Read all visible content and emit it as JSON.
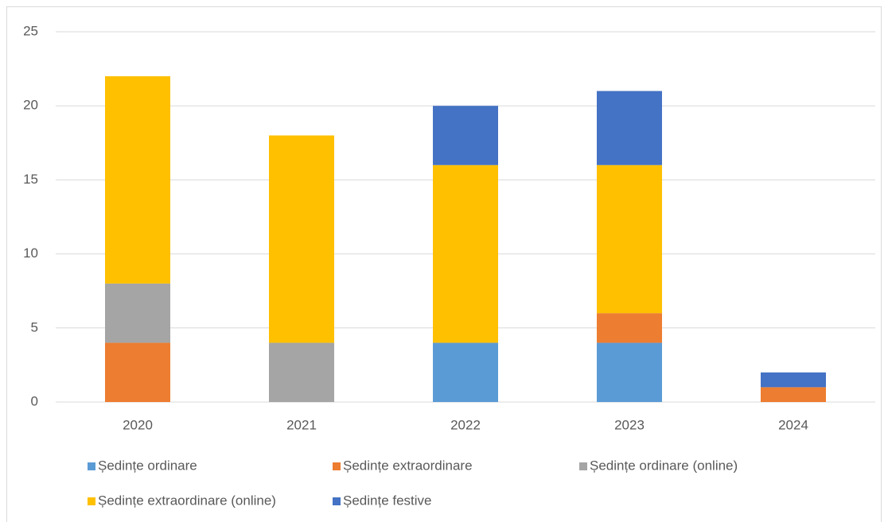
{
  "chart_data": {
    "type": "stacked_bar",
    "categories": [
      "2020",
      "2021",
      "2022",
      "2023",
      "2024"
    ],
    "series": [
      {
        "name": "Ședințe ordinare",
        "color": "#5b9bd5",
        "values": [
          0,
          0,
          4,
          4,
          0
        ]
      },
      {
        "name": "Ședințe extraordinare",
        "color": "#ed7d31",
        "values": [
          4,
          0,
          0,
          2,
          1
        ]
      },
      {
        "name": "Ședințe ordinare (online)",
        "color": "#a5a5a5",
        "values": [
          4,
          4,
          0,
          0,
          0
        ]
      },
      {
        "name": "Ședințe extraordinare (online)",
        "color": "#ffc000",
        "values": [
          14,
          14,
          12,
          10,
          0
        ]
      },
      {
        "name": "Ședințe festive",
        "color": "#4472c4",
        "values": [
          0,
          0,
          4,
          5,
          1
        ]
      }
    ],
    "ylim": [
      0,
      25
    ],
    "yticks": [
      0,
      5,
      10,
      15,
      20,
      25
    ],
    "grid": true,
    "legend": "bottom"
  }
}
